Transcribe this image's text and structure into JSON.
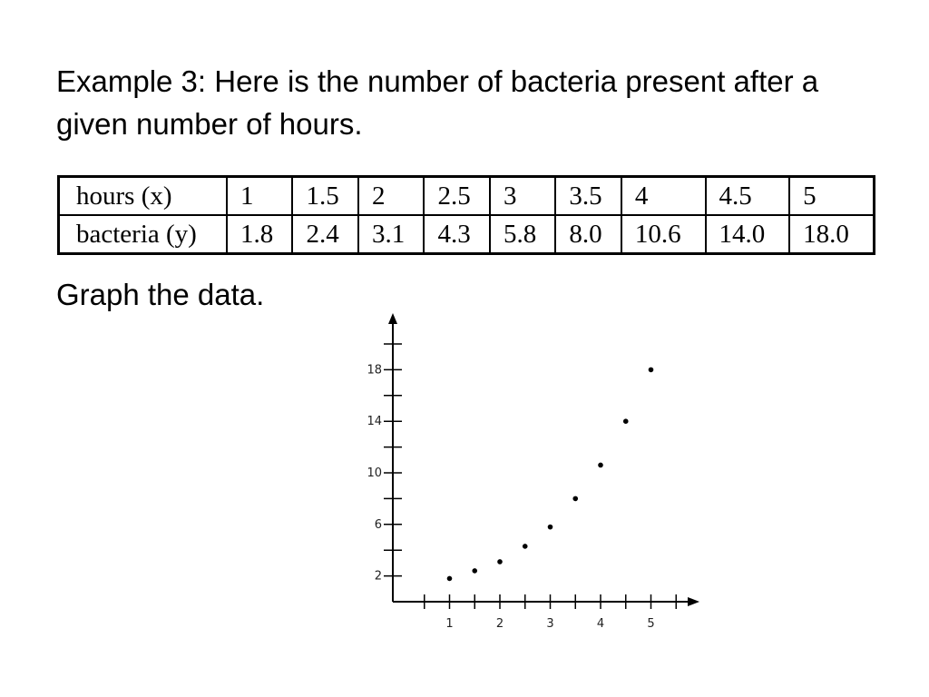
{
  "title": "Example 3:  Here is the number of bacteria present after a given number of hours.",
  "table": {
    "row_x_label": "hours (x)",
    "row_y_label": "bacteria (y)",
    "x": [
      "1",
      "1.5",
      "2",
      "2.5",
      "3",
      "3.5",
      "4",
      "4.5",
      "5"
    ],
    "y": [
      "1.8",
      "2.4",
      "3.1",
      "4.3",
      "5.8",
      "8.0",
      "10.6",
      "14.0",
      "18.0"
    ]
  },
  "instruction": "Graph the data.",
  "chart_data": {
    "type": "scatter",
    "x": [
      1,
      1.5,
      2,
      2.5,
      3,
      3.5,
      4,
      4.5,
      5
    ],
    "y": [
      1.8,
      2.4,
      3.1,
      4.3,
      5.8,
      8.0,
      10.6,
      14.0,
      18.0
    ],
    "xlim": [
      0,
      5.5
    ],
    "ylim": [
      0,
      20
    ],
    "x_tick_labels": [
      "1",
      "2",
      "3",
      "4",
      "5"
    ],
    "y_tick_labels": [
      "2",
      "6",
      "10",
      "14",
      "18"
    ],
    "xlabel": "",
    "ylabel": "",
    "grid": false,
    "point_color": "#000000"
  }
}
